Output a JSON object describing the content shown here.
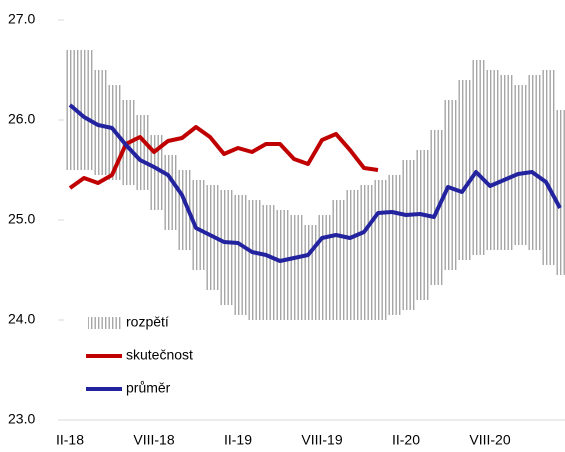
{
  "chart_data": {
    "type": "line",
    "categories": [
      "II-18",
      null,
      null,
      null,
      null,
      null,
      "VIII-18",
      null,
      null,
      null,
      null,
      null,
      "II-19",
      null,
      null,
      null,
      null,
      null,
      "VIII-19",
      null,
      null,
      null,
      null,
      null,
      "II-20",
      null,
      null,
      null,
      null,
      null,
      "VIII-20",
      null,
      null,
      null,
      null,
      null
    ],
    "series": [
      {
        "name": "rozpětí",
        "type": "range",
        "color": "#a6a6a6",
        "low": [
          25.5,
          25.5,
          25.45,
          25.4,
          25.35,
          25.3,
          25.1,
          24.9,
          24.7,
          24.5,
          24.3,
          24.15,
          24.05,
          24.0,
          24.0,
          24.0,
          24.0,
          24.0,
          24.0,
          24.0,
          24.0,
          24.0,
          24.0,
          24.05,
          24.1,
          24.2,
          24.35,
          24.5,
          24.6,
          24.65,
          24.7,
          24.7,
          24.75,
          24.7,
          24.55,
          24.45
        ],
        "high": [
          26.7,
          26.7,
          26.5,
          26.35,
          26.2,
          26.05,
          25.85,
          25.65,
          25.5,
          25.4,
          25.35,
          25.3,
          25.25,
          25.2,
          25.15,
          25.1,
          25.05,
          24.95,
          25.05,
          25.2,
          25.3,
          25.35,
          25.4,
          25.45,
          25.6,
          25.7,
          25.9,
          26.2,
          26.4,
          26.6,
          26.5,
          26.45,
          26.35,
          26.45,
          26.5,
          26.1
        ]
      },
      {
        "name": "skutečnost",
        "color": "#c00000",
        "values": [
          25.32,
          25.42,
          25.37,
          25.45,
          25.76,
          25.83,
          25.68,
          25.79,
          25.82,
          25.93,
          25.83,
          25.66,
          25.72,
          25.68,
          25.76,
          25.76,
          25.61,
          25.56,
          25.8,
          25.86,
          25.7,
          25.52,
          25.5,
          null,
          null,
          null,
          null,
          null,
          null,
          null,
          null,
          null,
          null,
          null,
          null,
          null
        ]
      },
      {
        "name": "průměr",
        "color": "#2323a0",
        "values": [
          26.15,
          26.03,
          25.95,
          25.92,
          25.75,
          25.6,
          25.53,
          25.45,
          25.25,
          24.92,
          24.85,
          24.78,
          24.77,
          24.68,
          24.65,
          24.59,
          24.62,
          24.65,
          24.82,
          24.85,
          24.82,
          24.88,
          25.07,
          25.08,
          25.05,
          25.06,
          25.03,
          25.33,
          25.28,
          25.48,
          25.34,
          25.4,
          25.46,
          25.48,
          25.38,
          25.12
        ]
      }
    ],
    "ylim": [
      23,
      27
    ],
    "yticks": [
      {
        "value": 23,
        "label": "23.0"
      },
      {
        "value": 24,
        "label": "24.0"
      },
      {
        "value": 25,
        "label": "25.0"
      },
      {
        "value": 26,
        "label": "26.0"
      },
      {
        "value": 27,
        "label": "27.0"
      }
    ]
  }
}
